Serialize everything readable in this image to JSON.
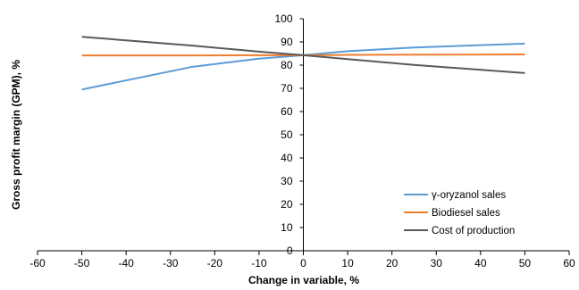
{
  "chart_data": {
    "type": "line",
    "xlabel": "Change in variable, %",
    "ylabel": "Gross profit  margin (GPM), %",
    "xlim": [
      -60,
      60
    ],
    "ylim": [
      0,
      100
    ],
    "xticks": [
      -60,
      -50,
      -40,
      -30,
      -20,
      -10,
      0,
      10,
      20,
      30,
      40,
      50,
      60
    ],
    "yticks": [
      0,
      10,
      20,
      30,
      40,
      50,
      60,
      70,
      80,
      90,
      100
    ],
    "grid": false,
    "legend_position": "bottom-right",
    "series": [
      {
        "name": "γ-oryzanol sales",
        "color": "#5b9bd5",
        "x": [
          -50,
          -25,
          -10,
          0,
          10,
          25,
          50
        ],
        "y": [
          69.5,
          79.3,
          82.8,
          84.3,
          86.0,
          87.6,
          89.3
        ]
      },
      {
        "name": "Biodiesel sales",
        "color": "#ed7d31",
        "x": [
          -50,
          -25,
          -10,
          0,
          10,
          25,
          50
        ],
        "y": [
          84.2,
          84.2,
          84.3,
          84.3,
          84.4,
          84.5,
          84.6
        ]
      },
      {
        "name": "Cost of production",
        "color": "#595959",
        "x": [
          -50,
          -25,
          -10,
          0,
          10,
          25,
          50
        ],
        "y": [
          92.2,
          88.4,
          85.8,
          84.3,
          82.6,
          80.1,
          76.6
        ]
      }
    ]
  }
}
